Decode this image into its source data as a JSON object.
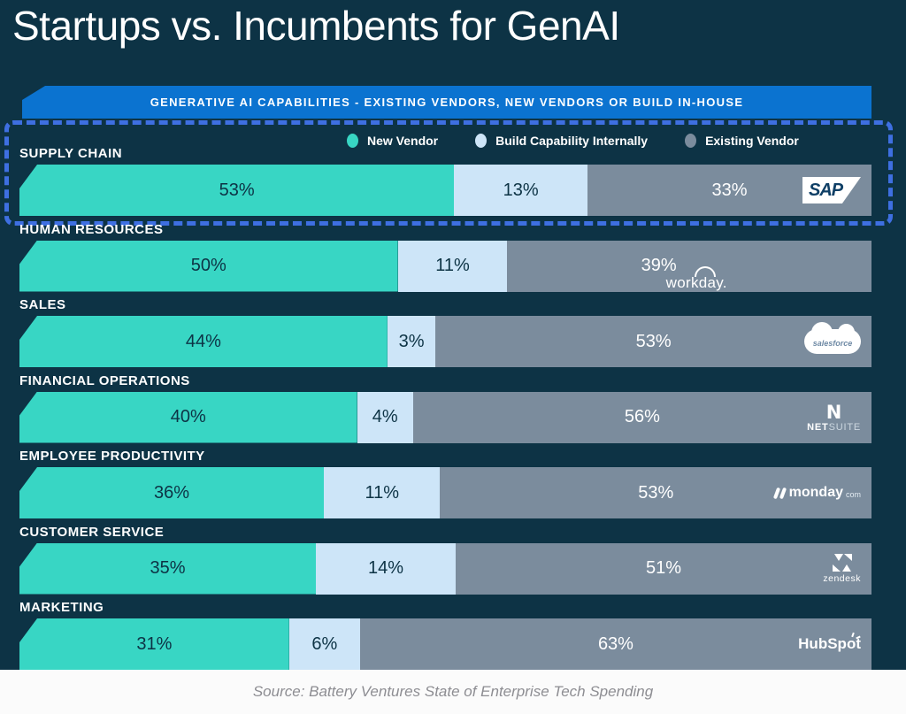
{
  "title": "Startups vs. Incumbents for GenAI",
  "banner": {
    "text": "GENERATIVE AI CAPABILITIES - EXISTING VENDORS, NEW VENDORS OR BUILD IN-HOUSE"
  },
  "legend": {
    "items": [
      {
        "label": "New Vendor",
        "color": "#38d6c4"
      },
      {
        "label": "Build Capability Internally",
        "color": "#cde5f8"
      },
      {
        "label": "Existing Vendor",
        "color": "#7b8c9d"
      }
    ]
  },
  "source": "Source: Battery Ventures State of Enterprise Tech Spending",
  "colors": {
    "background": "#0d3345",
    "banner": "#0b73d0",
    "dashed_highlight": "#3e6fe1",
    "new_vendor": "#38d6c4",
    "build_internal": "#cde5f8",
    "existing_vendor": "#7b8c9d",
    "footer": "#fbfbfb"
  },
  "chart_data": {
    "type": "bar",
    "orientation": "horizontal",
    "stacked": true,
    "unit": "%",
    "xlim": [
      0,
      100
    ],
    "title": "Startups vs. Incumbents for GenAI",
    "subtitle": "GENERATIVE AI CAPABILITIES - EXISTING VENDORS, NEW VENDORS OR BUILD IN-HOUSE",
    "legend_position": "top",
    "categories": [
      "SUPPLY CHAIN",
      "HUMAN RESOURCES",
      "SALES",
      "FINANCIAL OPERATIONS",
      "EMPLOYEE PRODUCTIVITY",
      "CUSTOMER SERVICE",
      "MARKETING"
    ],
    "series": [
      {
        "name": "New Vendor",
        "color": "#38d6c4",
        "values": [
          53,
          50,
          44,
          40,
          36,
          35,
          31
        ]
      },
      {
        "name": "Build Capability Internally",
        "color": "#cde5f8",
        "values": [
          13,
          11,
          3,
          4,
          11,
          14,
          6
        ]
      },
      {
        "name": "Existing Vendor",
        "color": "#7b8c9d",
        "values": [
          33,
          39,
          53,
          56,
          53,
          51,
          63
        ]
      }
    ],
    "vendor_per_category": [
      "SAP",
      "Workday",
      "Salesforce",
      "NetSuite",
      "monday.com",
      "Zendesk",
      "HubSpot"
    ],
    "annotations": [
      "SUPPLY CHAIN row outlined with blue dashed border"
    ]
  },
  "vendor_logos": [
    {
      "id": "sap",
      "text": "SAP"
    },
    {
      "id": "workday",
      "text": "workday."
    },
    {
      "id": "salesforce",
      "text": "salesforce"
    },
    {
      "id": "netsuite",
      "icon": "N",
      "bold": "NET",
      "light": "SUITE"
    },
    {
      "id": "monday",
      "text": "monday",
      "suffix": "com"
    },
    {
      "id": "zendesk",
      "text": "zendesk"
    },
    {
      "id": "hubspot",
      "pre": "HubSp",
      "o": "o",
      "post": "t"
    }
  ]
}
